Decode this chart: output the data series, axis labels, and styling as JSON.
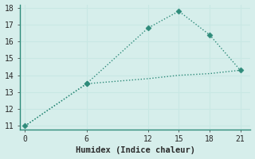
{
  "xlabel": "Humidex (Indice chaleur)",
  "x_upper": [
    0,
    6,
    12,
    15,
    18,
    21
  ],
  "y_upper": [
    11.0,
    13.5,
    16.8,
    17.8,
    16.4,
    14.3
  ],
  "x_lower": [
    0,
    6,
    12,
    15,
    18,
    21
  ],
  "y_lower": [
    11.0,
    13.5,
    13.8,
    14.0,
    14.1,
    14.3
  ],
  "xlim": [
    -0.5,
    22
  ],
  "ylim": [
    10.8,
    18.2
  ],
  "xticks": [
    0,
    6,
    12,
    15,
    18,
    21
  ],
  "yticks": [
    11,
    12,
    13,
    14,
    15,
    16,
    17,
    18
  ],
  "line_color": "#2e8b7a",
  "bg_color": "#d6eeeb",
  "grid_color": "#c8e8e4",
  "marker": "D",
  "marker_size": 3.5,
  "line_width": 1.0,
  "font_family": "monospace"
}
